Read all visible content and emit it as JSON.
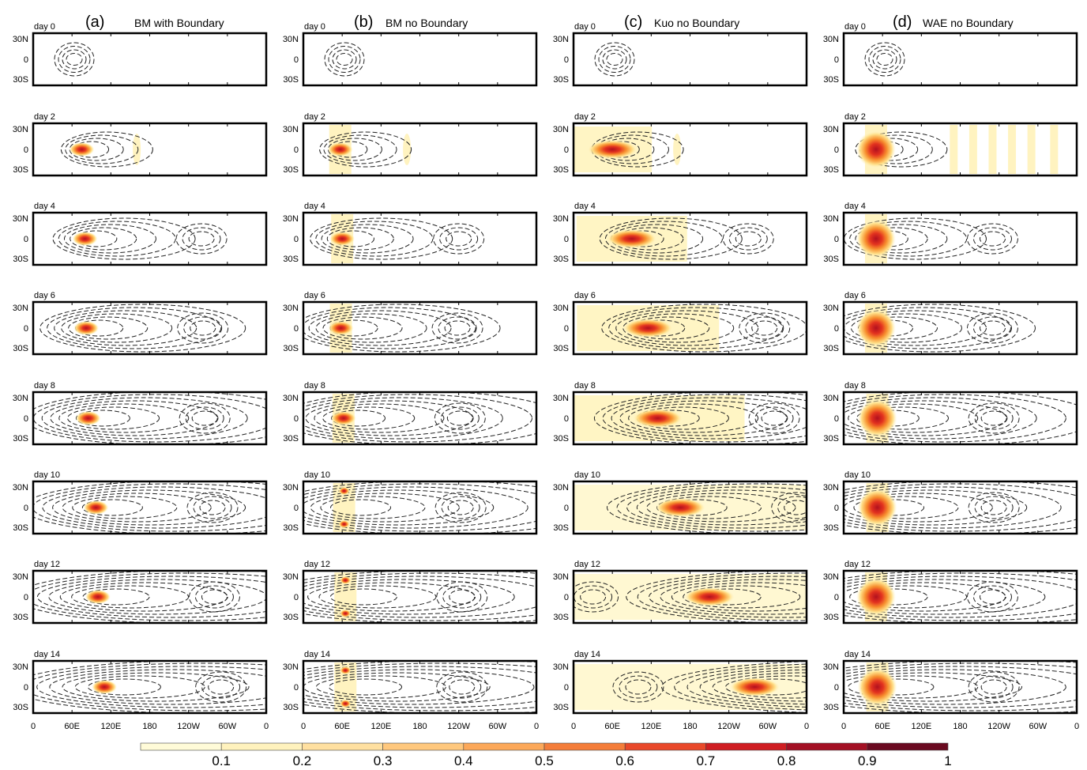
{
  "chart_data": {
    "type": "heatmap",
    "columns": [
      {
        "letter": "(a)",
        "title": "BM with Boundary"
      },
      {
        "letter": "(b)",
        "title": "BM no Boundary"
      },
      {
        "letter": "(c)",
        "title": "Kuo no Boundary"
      },
      {
        "letter": "(d)",
        "title": "WAE no Boundary"
      }
    ],
    "rows": [
      "day 0",
      "day 2",
      "day 4",
      "day 6",
      "day 8",
      "day 10",
      "day 12",
      "day 14"
    ],
    "y_ticks": [
      "30N",
      "0",
      "30S"
    ],
    "x_ticks": [
      "0",
      "60E",
      "120E",
      "180",
      "120W",
      "60W",
      "0"
    ],
    "colorbar": {
      "colors": [
        "#fffbd8",
        "#fff2bd",
        "#ffe0a0",
        "#ffc87d",
        "#fca859",
        "#f47d3a",
        "#e9492a",
        "#cf1e22",
        "#a31024",
        "#6a0a20"
      ],
      "labels": [
        "0.1",
        "0.2",
        "0.3",
        "0.4",
        "0.5",
        "0.6",
        "0.7",
        "0.8",
        "0.9",
        "1"
      ]
    },
    "heating_centers": {
      "description_units": "longitude (deg E), latitude (deg), peak value",
      "a": [
        [
          null,
          0,
          0
        ],
        [
          75,
          0,
          0.9
        ],
        [
          80,
          0,
          0.9
        ],
        [
          82,
          0,
          0.9
        ],
        [
          85,
          0,
          0.9
        ],
        [
          97,
          0,
          0.9
        ],
        [
          100,
          0,
          0.9
        ],
        [
          110,
          0,
          0.9
        ]
      ],
      "b": [
        [
          null,
          0,
          0
        ],
        [
          57,
          0,
          0.9
        ],
        [
          60,
          0,
          0.9
        ],
        [
          58,
          0,
          0.9
        ],
        [
          62,
          0,
          0.9
        ],
        [
          63,
          0,
          0.9
        ],
        [
          65,
          0,
          0.9
        ],
        [
          65,
          0,
          0.9
        ]
      ],
      "c": [
        [
          null,
          0,
          0
        ],
        [
          60,
          0,
          0.9
        ],
        [
          90,
          0,
          0.9
        ],
        [
          115,
          0,
          0.9
        ],
        [
          130,
          0,
          0.9
        ],
        [
          165,
          0,
          0.9
        ],
        [
          210,
          0,
          0.9
        ],
        [
          280,
          0,
          0.9
        ]
      ],
      "d": [
        [
          null,
          0,
          0
        ],
        [
          50,
          0,
          0.9
        ],
        [
          50,
          0,
          0.9
        ],
        [
          50,
          0,
          0.9
        ],
        [
          52,
          0,
          0.9
        ],
        [
          52,
          0,
          0.9
        ],
        [
          50,
          0,
          0.9
        ],
        [
          52,
          0,
          0.9
        ]
      ]
    }
  }
}
